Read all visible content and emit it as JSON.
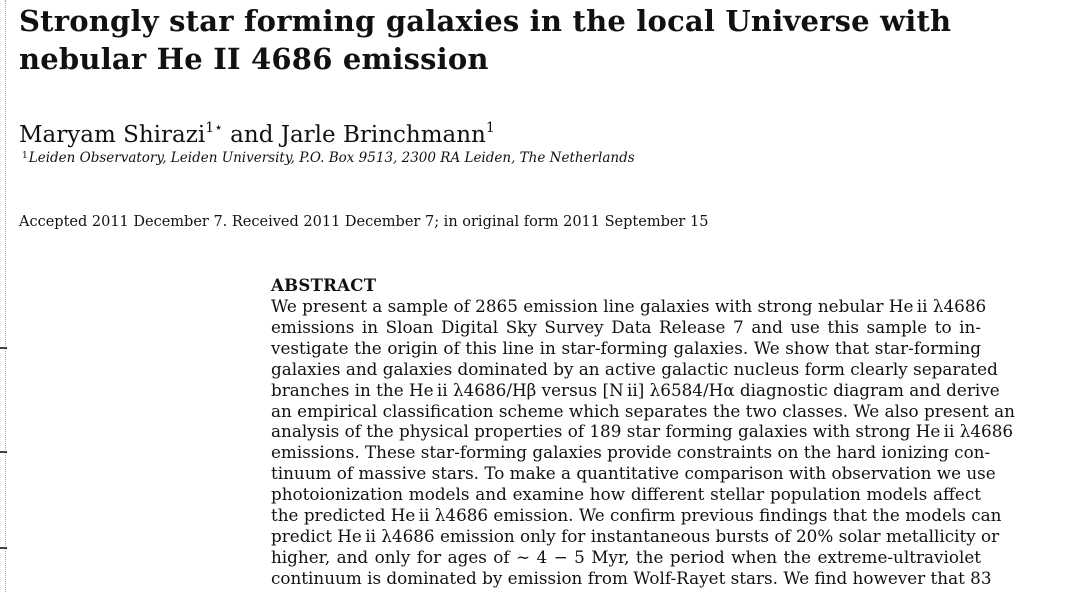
{
  "paper": {
    "title_lines": [
      "Strongly star forming galaxies in the local Universe with",
      "nebular He II 4686 emission"
    ],
    "authors": {
      "author1": "Maryam Shirazi",
      "author1_marks": "1⋆",
      "conjunction": " and ",
      "author2": "Jarle Brinchmann",
      "author2_mark": "1"
    },
    "affiliation": {
      "mark": "1",
      "text": "Leiden Observatory, Leiden University, P.O. Box 9513, 2300 RA Leiden, The Netherlands"
    },
    "dates": "Accepted 2011 December 7. Received 2011 December 7; in original form 2011 September 15",
    "abstract": {
      "heading": "ABSTRACT",
      "lines": [
        "We present a sample of 2865 emission line galaxies with strong nebular He ii λ4686",
        "emissions in Sloan Digital Sky Survey Data Release 7 and use this sample to in-",
        "vestigate the origin of this line in star-forming galaxies. We show that star-forming",
        "galaxies and galaxies dominated by an active galactic nucleus form clearly separated",
        "branches in the He ii λ4686/Hβ versus [N ii] λ6584/Hα diagnostic diagram and derive",
        "an empirical classification scheme which separates the two classes. We also present an",
        "analysis of the physical properties of 189 star forming galaxies with strong He ii λ4686",
        "emissions. These star-forming galaxies provide constraints on the hard ionizing con-",
        "tinuum of massive stars. To make a quantitative comparison with observation we use",
        "photoionization models and examine how different stellar population models affect",
        "the predicted He ii λ4686 emission. We confirm previous findings that the models can",
        "predict He ii λ4686 emission only for instantaneous bursts of 20% solar metallicity or",
        "higher, and only for ages of ∼ 4 − 5 Myr, the period when the extreme-ultraviolet",
        "continuum is dominated by emission from Wolf-Rayet stars. We find however that 83"
      ]
    }
  }
}
